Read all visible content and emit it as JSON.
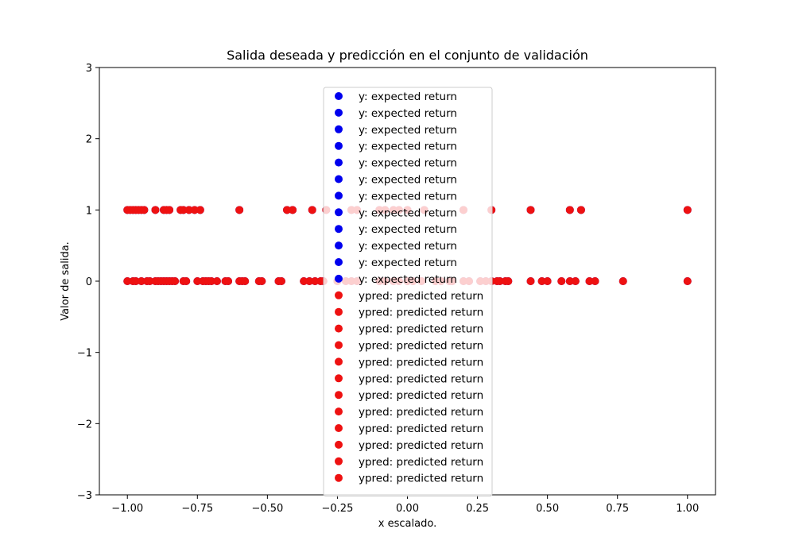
{
  "chart_data": {
    "type": "scatter",
    "title": "Salida deseada y predicción en el conjunto de validación",
    "xlabel": "x escalado.",
    "ylabel": "Valor de salida.",
    "xlim": [
      -1.1,
      1.1
    ],
    "ylim": [
      -3,
      3
    ],
    "xticks": [
      -1.0,
      -0.75,
      -0.5,
      -0.25,
      0.0,
      0.25,
      0.5,
      0.75,
      1.0
    ],
    "xtick_labels": [
      "−1.00",
      "−0.75",
      "−0.50",
      "−0.25",
      "0.00",
      "0.25",
      "0.50",
      "0.75",
      "1.00"
    ],
    "yticks": [
      -3,
      -2,
      -1,
      0,
      1,
      2,
      3
    ],
    "ytick_labels": [
      "−3",
      "−2",
      "−1",
      "0",
      "1",
      "2",
      "3"
    ],
    "grid": false,
    "legend_position": "upper center",
    "series": [
      {
        "name": "y: expected return",
        "color": "#0000ee",
        "points": [
          [
            -1.0,
            1
          ],
          [
            -0.99,
            1
          ],
          [
            -0.98,
            1
          ],
          [
            -0.97,
            1
          ],
          [
            -0.96,
            1
          ],
          [
            -0.95,
            1
          ],
          [
            -0.94,
            1
          ],
          [
            -0.9,
            1
          ],
          [
            -0.87,
            1
          ],
          [
            -0.86,
            1
          ],
          [
            -0.85,
            1
          ],
          [
            -0.81,
            1
          ],
          [
            -0.8,
            1
          ],
          [
            -0.78,
            1
          ],
          [
            -0.76,
            1
          ],
          [
            -0.74,
            1
          ],
          [
            -0.6,
            1
          ],
          [
            -0.43,
            1
          ],
          [
            -0.41,
            1
          ],
          [
            -0.34,
            1
          ],
          [
            -0.29,
            1
          ],
          [
            -0.2,
            1
          ],
          [
            -0.18,
            1
          ],
          [
            -0.1,
            1
          ],
          [
            -0.08,
            1
          ],
          [
            -0.05,
            1
          ],
          [
            -0.03,
            1
          ],
          [
            0.0,
            1
          ],
          [
            0.06,
            1
          ],
          [
            0.2,
            1
          ],
          [
            0.3,
            1
          ],
          [
            0.44,
            1
          ],
          [
            0.58,
            1
          ],
          [
            0.62,
            1
          ],
          [
            1.0,
            1
          ],
          [
            -1.0,
            0
          ],
          [
            -0.98,
            0
          ],
          [
            -0.97,
            0
          ],
          [
            -0.95,
            0
          ],
          [
            -0.93,
            0
          ],
          [
            -0.92,
            0
          ],
          [
            -0.9,
            0
          ],
          [
            -0.89,
            0
          ],
          [
            -0.88,
            0
          ],
          [
            -0.87,
            0
          ],
          [
            -0.86,
            0
          ],
          [
            -0.85,
            0
          ],
          [
            -0.84,
            0
          ],
          [
            -0.83,
            0
          ],
          [
            -0.8,
            0
          ],
          [
            -0.79,
            0
          ],
          [
            -0.75,
            0
          ],
          [
            -0.73,
            0
          ],
          [
            -0.72,
            0
          ],
          [
            -0.71,
            0
          ],
          [
            -0.7,
            0
          ],
          [
            -0.68,
            0
          ],
          [
            -0.65,
            0
          ],
          [
            -0.64,
            0
          ],
          [
            -0.6,
            0
          ],
          [
            -0.59,
            0
          ],
          [
            -0.58,
            0
          ],
          [
            -0.53,
            0
          ],
          [
            -0.52,
            0
          ],
          [
            -0.46,
            0
          ],
          [
            -0.45,
            0
          ],
          [
            -0.37,
            0
          ],
          [
            -0.35,
            0
          ],
          [
            -0.33,
            0
          ],
          [
            -0.31,
            0
          ],
          [
            -0.3,
            0
          ],
          [
            -0.25,
            0
          ],
          [
            -0.22,
            0
          ],
          [
            -0.2,
            0
          ],
          [
            -0.18,
            0
          ],
          [
            -0.1,
            0
          ],
          [
            -0.08,
            0
          ],
          [
            -0.05,
            0
          ],
          [
            -0.03,
            0
          ],
          [
            0.0,
            0
          ],
          [
            0.02,
            0
          ],
          [
            0.05,
            0
          ],
          [
            0.1,
            0
          ],
          [
            0.12,
            0
          ],
          [
            0.15,
            0
          ],
          [
            0.16,
            0
          ],
          [
            0.2,
            0
          ],
          [
            0.22,
            0
          ],
          [
            0.26,
            0
          ],
          [
            0.28,
            0
          ],
          [
            0.3,
            0
          ],
          [
            0.32,
            0
          ],
          [
            0.33,
            0
          ],
          [
            0.35,
            0
          ],
          [
            0.36,
            0
          ],
          [
            0.44,
            0
          ],
          [
            0.48,
            0
          ],
          [
            0.5,
            0
          ],
          [
            0.55,
            0
          ],
          [
            0.58,
            0
          ],
          [
            0.6,
            0
          ],
          [
            0.65,
            0
          ],
          [
            0.67,
            0
          ],
          [
            0.77,
            0
          ],
          [
            1.0,
            0
          ]
        ]
      },
      {
        "name": "ypred: predicted return",
        "color": "#ee1111",
        "points": [
          [
            -1.0,
            1
          ],
          [
            -0.99,
            1
          ],
          [
            -0.98,
            1
          ],
          [
            -0.97,
            1
          ],
          [
            -0.96,
            1
          ],
          [
            -0.95,
            1
          ],
          [
            -0.94,
            1
          ],
          [
            -0.9,
            1
          ],
          [
            -0.87,
            1
          ],
          [
            -0.86,
            1
          ],
          [
            -0.85,
            1
          ],
          [
            -0.81,
            1
          ],
          [
            -0.8,
            1
          ],
          [
            -0.78,
            1
          ],
          [
            -0.76,
            1
          ],
          [
            -0.74,
            1
          ],
          [
            -0.6,
            1
          ],
          [
            -0.43,
            1
          ],
          [
            -0.41,
            1
          ],
          [
            -0.34,
            1
          ],
          [
            -0.29,
            1
          ],
          [
            -0.2,
            1
          ],
          [
            -0.18,
            1
          ],
          [
            -0.1,
            1
          ],
          [
            -0.08,
            1
          ],
          [
            -0.05,
            1
          ],
          [
            -0.03,
            1
          ],
          [
            0.0,
            1
          ],
          [
            0.06,
            1
          ],
          [
            0.2,
            1
          ],
          [
            0.3,
            1
          ],
          [
            0.44,
            1
          ],
          [
            0.58,
            1
          ],
          [
            0.62,
            1
          ],
          [
            1.0,
            1
          ],
          [
            -1.0,
            0
          ],
          [
            -0.98,
            0
          ],
          [
            -0.97,
            0
          ],
          [
            -0.95,
            0
          ],
          [
            -0.93,
            0
          ],
          [
            -0.92,
            0
          ],
          [
            -0.9,
            0
          ],
          [
            -0.89,
            0
          ],
          [
            -0.88,
            0
          ],
          [
            -0.87,
            0
          ],
          [
            -0.86,
            0
          ],
          [
            -0.85,
            0
          ],
          [
            -0.84,
            0
          ],
          [
            -0.83,
            0
          ],
          [
            -0.8,
            0
          ],
          [
            -0.79,
            0
          ],
          [
            -0.75,
            0
          ],
          [
            -0.73,
            0
          ],
          [
            -0.72,
            0
          ],
          [
            -0.71,
            0
          ],
          [
            -0.7,
            0
          ],
          [
            -0.68,
            0
          ],
          [
            -0.65,
            0
          ],
          [
            -0.64,
            0
          ],
          [
            -0.6,
            0
          ],
          [
            -0.59,
            0
          ],
          [
            -0.58,
            0
          ],
          [
            -0.53,
            0
          ],
          [
            -0.52,
            0
          ],
          [
            -0.46,
            0
          ],
          [
            -0.45,
            0
          ],
          [
            -0.37,
            0
          ],
          [
            -0.35,
            0
          ],
          [
            -0.33,
            0
          ],
          [
            -0.31,
            0
          ],
          [
            -0.3,
            0
          ],
          [
            -0.25,
            0
          ],
          [
            -0.22,
            0
          ],
          [
            -0.2,
            0
          ],
          [
            -0.18,
            0
          ],
          [
            -0.1,
            0
          ],
          [
            -0.08,
            0
          ],
          [
            -0.05,
            0
          ],
          [
            -0.03,
            0
          ],
          [
            0.0,
            0
          ],
          [
            0.02,
            0
          ],
          [
            0.05,
            0
          ],
          [
            0.1,
            0
          ],
          [
            0.12,
            0
          ],
          [
            0.15,
            0
          ],
          [
            0.16,
            0
          ],
          [
            0.2,
            0
          ],
          [
            0.22,
            0
          ],
          [
            0.26,
            0
          ],
          [
            0.28,
            0
          ],
          [
            0.3,
            0
          ],
          [
            0.32,
            0
          ],
          [
            0.33,
            0
          ],
          [
            0.35,
            0
          ],
          [
            0.36,
            0
          ],
          [
            0.44,
            0
          ],
          [
            0.48,
            0
          ],
          [
            0.5,
            0
          ],
          [
            0.55,
            0
          ],
          [
            0.58,
            0
          ],
          [
            0.6,
            0
          ],
          [
            0.65,
            0
          ],
          [
            0.67,
            0
          ],
          [
            0.77,
            0
          ],
          [
            1.0,
            0
          ]
        ]
      }
    ],
    "legend_entries": [
      {
        "label": "y: expected return",
        "color": "#0000ee"
      },
      {
        "label": "y: expected return",
        "color": "#0000ee"
      },
      {
        "label": "y: expected return",
        "color": "#0000ee"
      },
      {
        "label": "y: expected return",
        "color": "#0000ee"
      },
      {
        "label": "y: expected return",
        "color": "#0000ee"
      },
      {
        "label": "y: expected return",
        "color": "#0000ee"
      },
      {
        "label": "y: expected return",
        "color": "#0000ee"
      },
      {
        "label": "y: expected return",
        "color": "#0000ee"
      },
      {
        "label": "y: expected return",
        "color": "#0000ee"
      },
      {
        "label": "y: expected return",
        "color": "#0000ee"
      },
      {
        "label": "y: expected return",
        "color": "#0000ee"
      },
      {
        "label": "y: expected return",
        "color": "#0000ee"
      },
      {
        "label": "ypred: predicted return",
        "color": "#ee1111"
      },
      {
        "label": "ypred: predicted return",
        "color": "#ee1111"
      },
      {
        "label": "ypred: predicted return",
        "color": "#ee1111"
      },
      {
        "label": "ypred: predicted return",
        "color": "#ee1111"
      },
      {
        "label": "ypred: predicted return",
        "color": "#ee1111"
      },
      {
        "label": "ypred: predicted return",
        "color": "#ee1111"
      },
      {
        "label": "ypred: predicted return",
        "color": "#ee1111"
      },
      {
        "label": "ypred: predicted return",
        "color": "#ee1111"
      },
      {
        "label": "ypred: predicted return",
        "color": "#ee1111"
      },
      {
        "label": "ypred: predicted return",
        "color": "#ee1111"
      },
      {
        "label": "ypred: predicted return",
        "color": "#ee1111"
      },
      {
        "label": "ypred: predicted return",
        "color": "#ee1111"
      }
    ]
  }
}
